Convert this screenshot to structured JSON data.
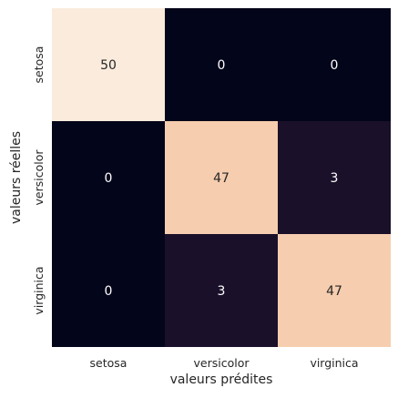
{
  "chart_data": {
    "type": "heatmap",
    "title": "",
    "xlabel": "valeurs prédites",
    "ylabel": "valeurs réelles",
    "x_categories": [
      "setosa",
      "versicolor",
      "virginica"
    ],
    "y_categories": [
      "setosa",
      "versicolor",
      "virginica"
    ],
    "values": [
      [
        50,
        0,
        0
      ],
      [
        0,
        47,
        3
      ],
      [
        0,
        3,
        47
      ]
    ],
    "colorbar": false,
    "colormap": "rocket",
    "value_range": [
      0,
      50
    ],
    "annotate": true
  }
}
